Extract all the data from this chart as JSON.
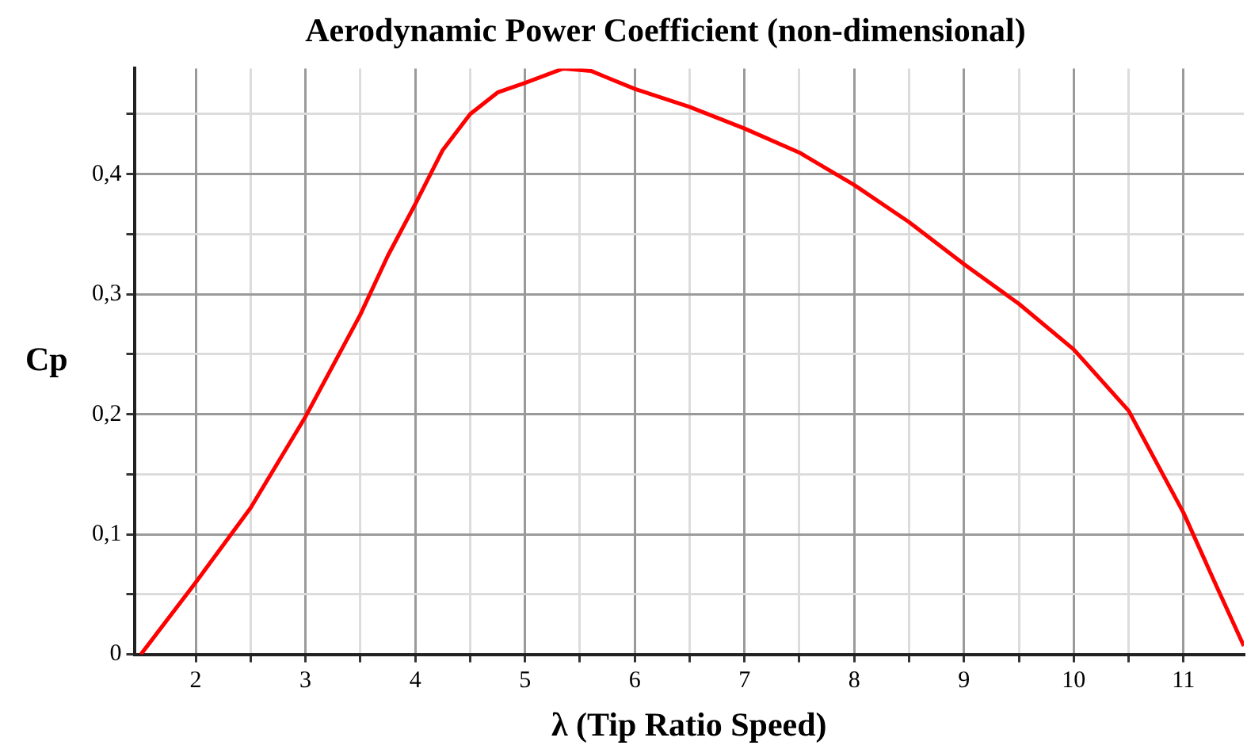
{
  "chart_data": {
    "type": "line",
    "title": "Aerodynamic Power Coefficient (non-dimensional)",
    "xlabel": "λ (Tip Ratio Speed)",
    "ylabel": "Cp",
    "series": [
      {
        "color": "#ff0000",
        "x": [
          1.5,
          2,
          2.5,
          3,
          3.5,
          3.75,
          4,
          4.25,
          4.5,
          4.75,
          5,
          5.35,
          5.6,
          6,
          6.5,
          7,
          7.5,
          8,
          8.5,
          9,
          9.5,
          10,
          10.5,
          11,
          11.3,
          11.55
        ],
        "values": [
          0,
          0.06,
          0.122,
          0.198,
          0.283,
          0.332,
          0.375,
          0.42,
          0.45,
          0.468,
          0.476,
          0.488,
          0.486,
          0.471,
          0.456,
          0.438,
          0.418,
          0.391,
          0.36,
          0.325,
          0.292,
          0.254,
          0.203,
          0.118,
          0.057,
          0.007
        ]
      }
    ],
    "xlim": [
      1.44,
      11.55
    ],
    "ylim": [
      0,
      0.488
    ],
    "xticks": [
      2,
      {
        "value": 2.5,
        "label": null
      },
      3,
      {
        "value": 3.5,
        "label": null
      },
      4,
      {
        "value": 4.5,
        "label": null
      },
      5,
      {
        "value": 5.5,
        "label": null
      },
      6,
      {
        "value": 6.5,
        "label": null
      },
      7,
      {
        "value": 7.5,
        "label": null
      },
      8,
      {
        "value": 8.5,
        "label": null
      },
      9,
      {
        "value": 9.5,
        "label": null
      },
      10,
      {
        "value": 10.5,
        "label": null
      },
      11
    ],
    "yticks": [
      {
        "value": 0,
        "label": "0"
      },
      {
        "value": 0.05,
        "label": null
      },
      {
        "value": 0.1,
        "label": "0,1"
      },
      {
        "value": 0.15,
        "label": null
      },
      {
        "value": 0.2,
        "label": "0,2"
      },
      {
        "value": 0.25,
        "label": null
      },
      {
        "value": 0.3,
        "label": "0,3"
      },
      {
        "value": 0.35,
        "label": null
      },
      {
        "value": 0.4,
        "label": "0,4"
      },
      {
        "value": 0.45,
        "label": null
      }
    ],
    "grid": true,
    "marker": "none",
    "line_style": "solid"
  }
}
